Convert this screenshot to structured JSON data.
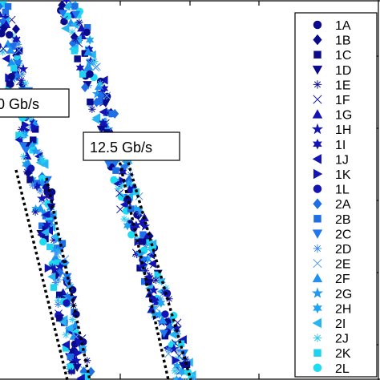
{
  "chart_data": {
    "type": "scatter",
    "annotations": [
      {
        "id": "left",
        "text": "0 Gb/s"
      },
      {
        "id": "right",
        "text": "12.5 Gb/s"
      }
    ],
    "legend": {
      "placement": "top-right",
      "entries": [
        {
          "label": "1A",
          "marker": "circle",
          "color": "#0a0a8c"
        },
        {
          "label": "1B",
          "marker": "diamond",
          "color": "#0a0a8c"
        },
        {
          "label": "1C",
          "marker": "square",
          "color": "#0a0a8c"
        },
        {
          "label": "1D",
          "marker": "triangle-down",
          "color": "#0a0a8c"
        },
        {
          "label": "1E",
          "marker": "asterisk",
          "color": "#1414a0"
        },
        {
          "label": "1F",
          "marker": "x",
          "color": "#1414a0"
        },
        {
          "label": "1G",
          "marker": "triangle-up",
          "color": "#1414b4"
        },
        {
          "label": "1H",
          "marker": "star",
          "color": "#1414b4"
        },
        {
          "label": "1I",
          "marker": "hexagram",
          "color": "#1414b4"
        },
        {
          "label": "1J",
          "marker": "triangle-left",
          "color": "#1414b4"
        },
        {
          "label": "1K",
          "marker": "triangle-right",
          "color": "#1414b4"
        },
        {
          "label": "1L",
          "marker": "circle",
          "color": "#1414b4"
        },
        {
          "label": "2A",
          "marker": "diamond",
          "color": "#1e6ee6"
        },
        {
          "label": "2B",
          "marker": "square",
          "color": "#1e6ee6"
        },
        {
          "label": "2C",
          "marker": "triangle-down",
          "color": "#1e78f0"
        },
        {
          "label": "2D",
          "marker": "asterisk",
          "color": "#3c8cf0"
        },
        {
          "label": "2E",
          "marker": "x",
          "color": "#50a0f0"
        },
        {
          "label": "2F",
          "marker": "triangle-up",
          "color": "#1e90f0"
        },
        {
          "label": "2G",
          "marker": "star",
          "color": "#1e9af0"
        },
        {
          "label": "2H",
          "marker": "hexagram",
          "color": "#1ea4f0"
        },
        {
          "label": "2I",
          "marker": "triangle-left",
          "color": "#28b4f0"
        },
        {
          "label": "2J",
          "marker": "asterisk",
          "color": "#32c8f0"
        },
        {
          "label": "2K",
          "marker": "square",
          "color": "#1ed2f0"
        },
        {
          "label": "2L",
          "marker": "circle",
          "color": "#1edcf0"
        }
      ]
    },
    "series": [
      {
        "id": "left-band",
        "points": [
          [
            0.0,
            0.955
          ],
          [
            0.06,
            0.93
          ],
          [
            0.12,
            0.905
          ],
          [
            0.18,
            0.88
          ],
          [
            0.24,
            0.855
          ],
          [
            0.3,
            0.83
          ],
          [
            0.36,
            0.805
          ],
          [
            0.42,
            0.78
          ],
          [
            0.48,
            0.755
          ],
          [
            0.54,
            0.73
          ],
          [
            0.6,
            0.705
          ],
          [
            0.66,
            0.68
          ],
          [
            0.72,
            0.655
          ],
          [
            0.78,
            0.63
          ],
          [
            0.84,
            0.605
          ],
          [
            0.9,
            0.58
          ],
          [
            0.96,
            0.555
          ],
          [
            1.0,
            0.54
          ]
        ]
      },
      {
        "id": "right-band",
        "points": [
          [
            0.0,
            0.985
          ],
          [
            0.06,
            0.96
          ],
          [
            0.12,
            0.935
          ],
          [
            0.18,
            0.91
          ],
          [
            0.24,
            0.885
          ],
          [
            0.3,
            0.86
          ],
          [
            0.36,
            0.835
          ],
          [
            0.42,
            0.81
          ],
          [
            0.48,
            0.785
          ],
          [
            0.54,
            0.76
          ],
          [
            0.6,
            0.735
          ],
          [
            0.66,
            0.71
          ],
          [
            0.72,
            0.685
          ],
          [
            0.78,
            0.66
          ],
          [
            0.84,
            0.635
          ],
          [
            0.9,
            0.61
          ],
          [
            0.96,
            0.585
          ],
          [
            1.0,
            0.57
          ]
        ]
      }
    ]
  }
}
